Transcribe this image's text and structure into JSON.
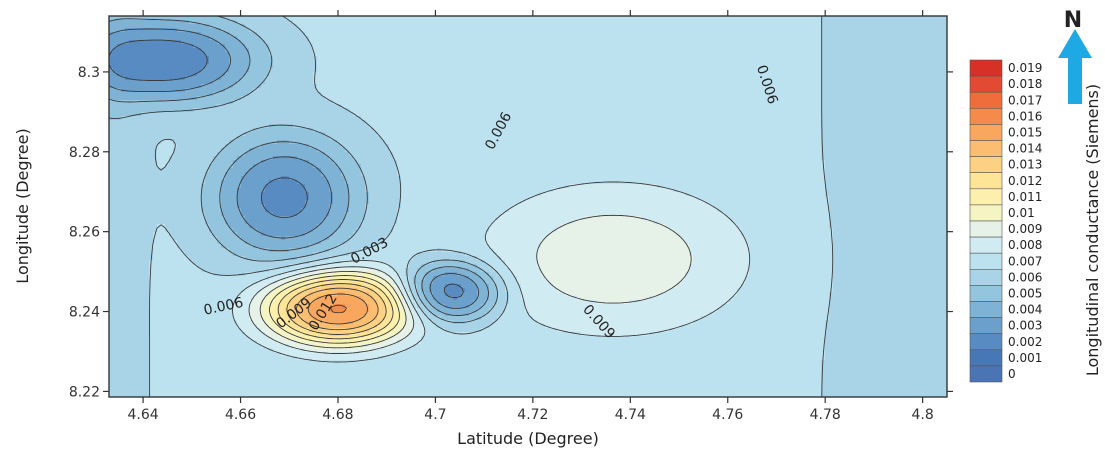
{
  "chart_data": {
    "type": "contour",
    "title": "",
    "xlabel": "Latitude (Degree)",
    "ylabel": "Longitude (Degree)",
    "xlim": [
      4.633,
      4.805
    ],
    "ylim": [
      8.2186,
      8.314
    ],
    "x_ticks": [
      "4.64",
      "4.66",
      "4.68",
      "4.7",
      "4.72",
      "4.74",
      "4.76",
      "4.78",
      "4.8"
    ],
    "y_ticks": [
      "8.22",
      "8.24",
      "8.26",
      "8.28",
      "8.3"
    ],
    "colorbar": {
      "label": "Longitudinal conductance (Siemens)",
      "levels": [
        "0.019",
        "0.018",
        "0.017",
        "0.016",
        "0.015",
        "0.014",
        "0.013",
        "0.012",
        "0.011",
        "0.01",
        "0.009",
        "0.008",
        "0.007",
        "0.006",
        "0.005",
        "0.004",
        "0.003",
        "0.002",
        "0.001",
        "0"
      ],
      "colors": [
        "#d73027",
        "#e34a33",
        "#ef6c3b",
        "#f58b4b",
        "#f9a75f",
        "#fbbd6f",
        "#fdd183",
        "#fde497",
        "#fdf0ad",
        "#f5f5c4",
        "#e6f2e8",
        "#d1ebf3",
        "#bde2ef",
        "#a9d4e8",
        "#94c5df",
        "#7fb3d6",
        "#6b9fcc",
        "#588bc1",
        "#4777b5",
        "#4a74b4"
      ]
    },
    "contour_labels": [
      {
        "text": "0.006",
        "x": 4.713,
        "y": 8.2852,
        "rotate": -62
      },
      {
        "text": "0.006",
        "x": 4.768,
        "y": 8.2968,
        "rotate": 72
      },
      {
        "text": "0.003",
        "x": 4.6865,
        "y": 8.2551,
        "rotate": -28
      },
      {
        "text": "0.006",
        "x": 4.6565,
        "y": 8.2412,
        "rotate": -12
      },
      {
        "text": "0.009",
        "x": 4.671,
        "y": 8.2395,
        "rotate": -38
      },
      {
        "text": "0.012",
        "x": 4.677,
        "y": 8.2398,
        "rotate": -58
      },
      {
        "text": "0.009",
        "x": 4.7335,
        "y": 8.2374,
        "rotate": 48
      }
    ],
    "features": [
      {
        "type": "low",
        "x": 4.645,
        "y": 8.3029,
        "value": 0.0005
      },
      {
        "type": "low",
        "x": 4.669,
        "y": 8.2685,
        "value": 0.001
      },
      {
        "type": "low",
        "x": 4.7035,
        "y": 8.2451,
        "value": 0.0002
      },
      {
        "type": "high",
        "x": 4.68,
        "y": 8.2408,
        "value": 0.0195
      },
      {
        "type": "high",
        "x": 4.7365,
        "y": 8.2531,
        "value": 0.0105
      }
    ],
    "base_level": 0.0072,
    "edge_terms": [
      {
        "axis": "x",
        "center": 4.802,
        "width": 0.012,
        "amp": -0.0012
      },
      {
        "axis": "x",
        "center": 4.633,
        "width": 0.005,
        "amp": -0.0008
      }
    ],
    "grid": false,
    "legend_position": "right"
  },
  "north_arrow": {
    "label": "N",
    "color": "#1ea8e4"
  }
}
